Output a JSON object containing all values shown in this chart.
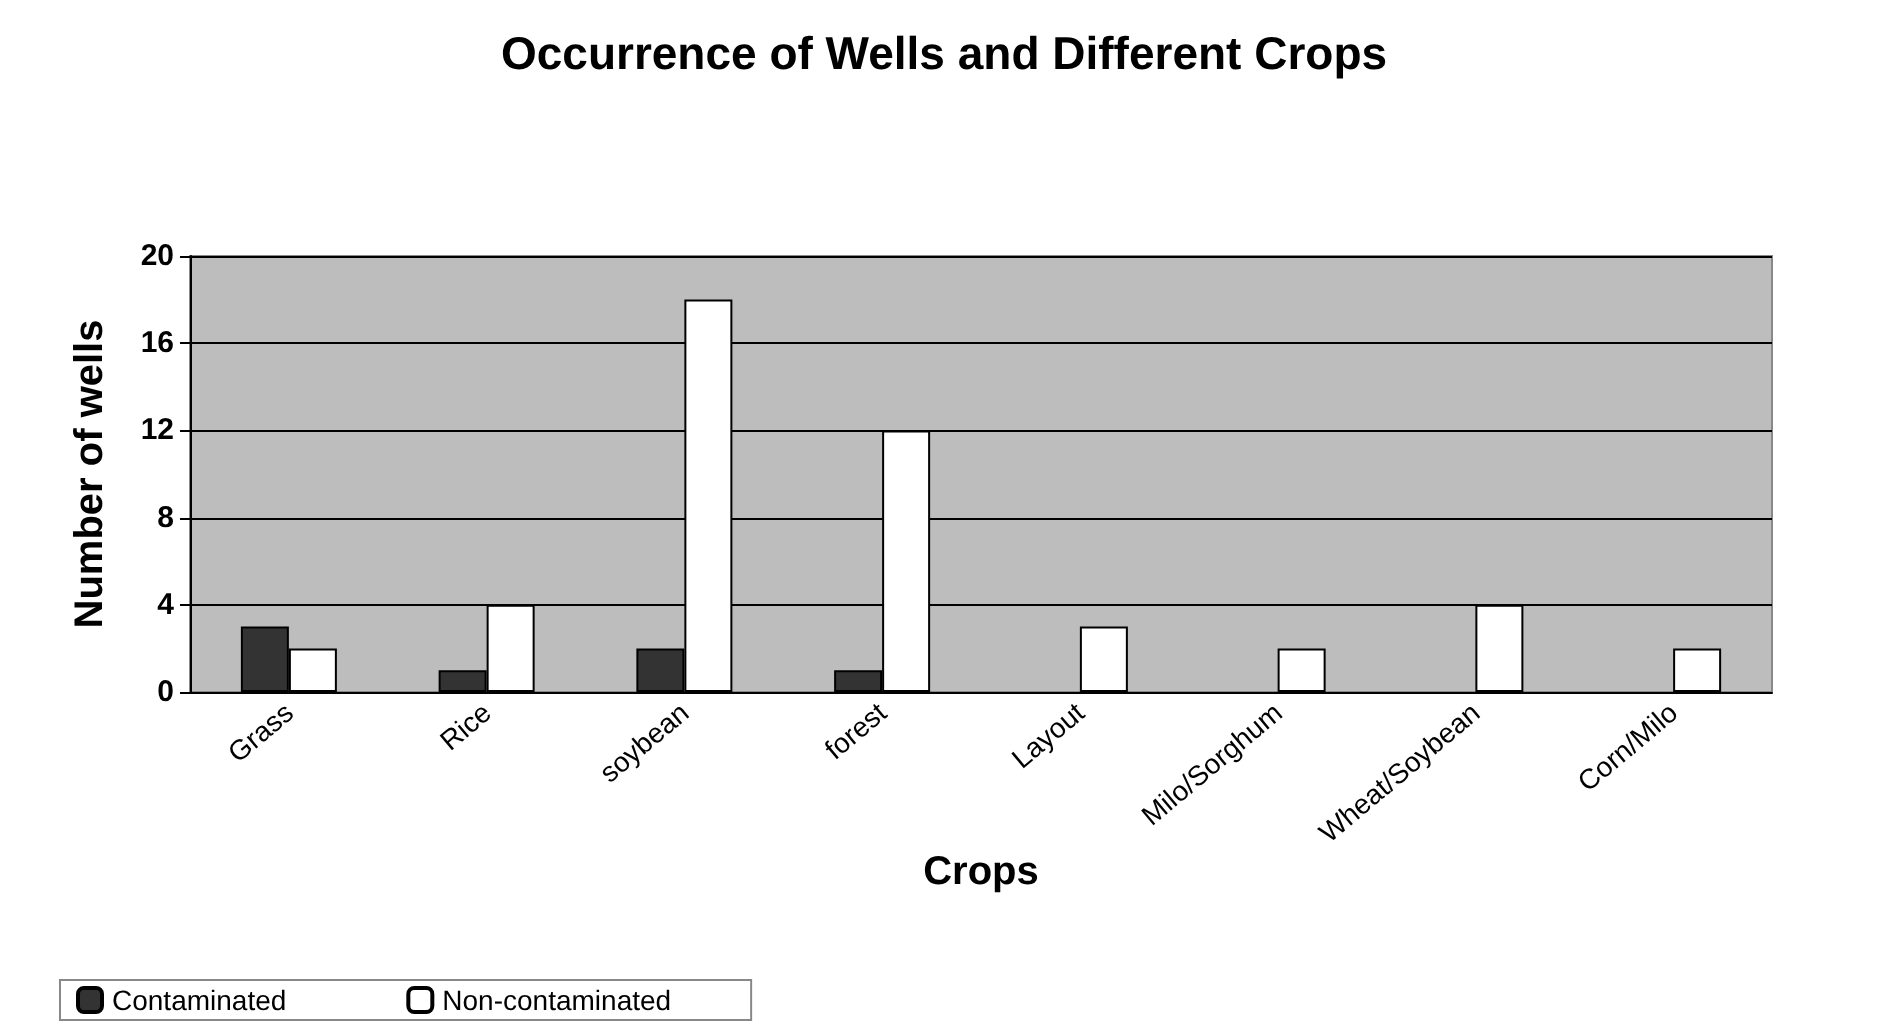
{
  "chart_data": {
    "type": "bar",
    "title": "Occurrence of Wells and Different Crops",
    "xlabel": "Crops",
    "ylabel": "Number of wells",
    "categories": [
      "Grass",
      "Rice",
      "soybean",
      "forest",
      "Layout",
      "Milo/Sorghum",
      "Wheat/Soybean",
      "Corn/Milo"
    ],
    "series": [
      {
        "name": "Contaminated",
        "color": "#333333",
        "values": [
          3,
          1,
          2,
          1,
          0,
          0,
          0,
          0
        ]
      },
      {
        "name": "Non-contaminated",
        "color": "#ffffff",
        "values": [
          2,
          4,
          18,
          12,
          3,
          2,
          4,
          2
        ]
      }
    ],
    "ylim": [
      0,
      20
    ],
    "yticks": [
      0,
      4,
      8,
      12,
      16,
      20
    ],
    "grid": "y",
    "legend": "bottom left"
  }
}
